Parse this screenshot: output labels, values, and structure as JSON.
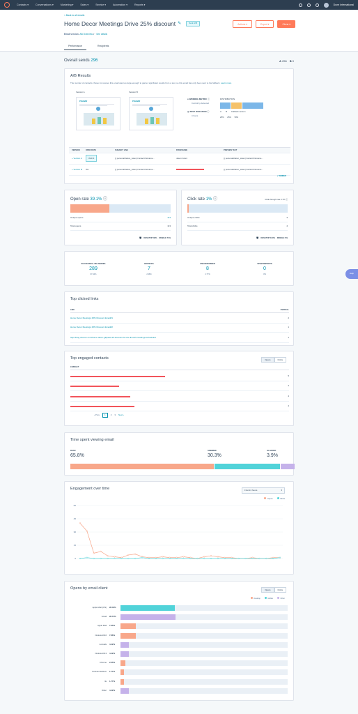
{
  "nav": {
    "items": [
      "Contacts",
      "Conversations",
      "Marketing",
      "Sales",
      "Service",
      "Automation",
      "Reports"
    ],
    "account": "Dune International"
  },
  "header": {
    "back": "< Back to all emails",
    "title": "Home Decor Meetings Drive 25% discount",
    "status": "Sent A/B",
    "email_version_label": "Email version:",
    "email_version_value": "AB Overview",
    "see_details": "See details",
    "actions": "Actions",
    "export": "Export",
    "clone": "Clone",
    "tabs": [
      "Performance",
      "Recipients"
    ]
  },
  "overall": {
    "label": "Overall sends",
    "value": "296",
    "a": "A",
    "a_val": "296",
    "b": "B",
    "b_val": "0"
  },
  "ab": {
    "title": "A/B Results",
    "description": "The number of contacts chosen to receive this email was too large enough to garner significant results from a test, so this email has only been sent to the fallback.",
    "learn_more": "Learn more",
    "version_a": "Version A",
    "version_b": "Version B",
    "thumb_brand": "POLMAR",
    "winning_metric_label": "WINNING METRIC",
    "winning_metric_value": "Control by delivered",
    "test_duration_label": "TEST DURATION",
    "test_duration_value": "4 hours",
    "distribution_label": "DISTRIBUTION",
    "dist_a": "A",
    "dist_b": "B",
    "dist_fallback": "Fallback version",
    "dist_a_pct": "25%",
    "dist_b_pct": "25%",
    "dist_fb_pct": "50%",
    "table_headers": [
      "VERSION",
      "OPEN RATE",
      "SUBJECT LINE",
      "FROM NAME",
      "PREVIEW TEXT"
    ],
    "rows": [
      {
        "version": "Version A",
        "open_rate": "39.1%",
        "subject": "{{ personalization_token('contact.firstname...",
        "from": "Jason Grant",
        "preview": "{{ personalization_token('contact.firstname..."
      },
      {
        "version": "Version B",
        "open_rate": "0%",
        "subject": "{{ personalization_token('contact.firstname...",
        "from": "",
        "preview": "{{ personalization_token('contact.firstname..."
      }
    ],
    "winner": "WINNER"
  },
  "open_rate": {
    "label": "Open rate",
    "value": "39.1%",
    "fill": 0.391,
    "unique_label": "Unique opens",
    "unique_value": "113",
    "total_label": "Total opens",
    "total_value": "113",
    "desktop": "DESKTOP 39%",
    "mobile": "MOBILE 74%"
  },
  "click_rate": {
    "label": "Click rate",
    "value": "1%",
    "fill": 0.01,
    "ctr": "Click-through rate 3.7%",
    "unique_label": "Unique clicks",
    "unique_value": "3",
    "total_label": "Total clicks",
    "total_value": "4",
    "desktop": "DESKTOP 100%",
    "mobile": "MOBILE 0%"
  },
  "delivery": [
    {
      "title": "SUCCESSFUL DELIVERIES",
      "value": "289",
      "sub": "97.64%"
    },
    {
      "title": "BOUNCES",
      "value": "7",
      "sub": "2.36%"
    },
    {
      "title": "UNSUBSCRIBED",
      "value": "8",
      "sub": "2.77%"
    },
    {
      "title": "SPAM REPORTS",
      "value": "0",
      "sub": "0%"
    }
  ],
  "links": {
    "title": "Top clicked links",
    "head_link": "LINK",
    "head_count": "OVERALL",
    "rows": [
      {
        "link": "Home Decor Meetings 25% Discount Email#1",
        "count": "2"
      },
      {
        "link": "Home Decor Meetings 25% Discount Email#2",
        "count": "1"
      },
      {
        "link": "http://blog.ohuzon.com/home-decor-giftpass-25-discount-for-the-first-25-meetings-scheduled",
        "count": "1"
      }
    ]
  },
  "contacts": {
    "title": "Top engaged contacts",
    "toggle_opens": "Opens",
    "toggle_clicks": "Clicks",
    "head": "CONTACT",
    "counts": [
      "5",
      "4",
      "4",
      "4"
    ],
    "pager_prev": "Prev",
    "pages": [
      "1",
      "2",
      "3"
    ],
    "pager_next": "Next"
  },
  "time": {
    "title": "Time spent viewing email",
    "read_label": "READ",
    "read_value": "65.8%",
    "read_fill": 0.658,
    "skimmed_label": "SKIMMED",
    "skimmed_value": "30.3%",
    "skimmed_fill": 0.303,
    "glanced_label": "GLANCED",
    "glanced_value": "3.9%",
    "glanced_fill": 0.039
  },
  "engagement": {
    "title": "Engagement over time",
    "range": "First 24 hours",
    "legend_opens": "Opens",
    "legend_clicks": "Clicks"
  },
  "chart_data": {
    "type": "line",
    "title": "Engagement over time",
    "y_ticks": [
      "0",
      "15",
      "30",
      "45",
      "60"
    ],
    "ylim": [
      0,
      60
    ],
    "series": [
      {
        "name": "Opens",
        "values": [
          40,
          31,
          6,
          8,
          3,
          2,
          1,
          4,
          5,
          2,
          1,
          1,
          2,
          1,
          1,
          2,
          1,
          0,
          2,
          3,
          2,
          1,
          1,
          0,
          0,
          1,
          0,
          0,
          1,
          1
        ]
      },
      {
        "name": "Clicks",
        "values": [
          0,
          1,
          0,
          0,
          0,
          0,
          0,
          0,
          0,
          1,
          0,
          0,
          0,
          0,
          0,
          0,
          0,
          0,
          0,
          0,
          0,
          0,
          0,
          0,
          0,
          0,
          0,
          0,
          0,
          1
        ]
      }
    ]
  },
  "clients": {
    "title": "Opens by email client",
    "toggle_opens": "Opens",
    "toggle_clicks": "Clicks",
    "legend": [
      "Desktop",
      "Mobile",
      "Other"
    ],
    "rows": [
      {
        "name": "Apple Mail (iOS)",
        "pct": "28.42%",
        "fill": 0.2842,
        "color": "#51d3d9"
      },
      {
        "name": "Gmail",
        "pct": "28.74%",
        "fill": 0.2874,
        "color": "#c5b2ea"
      },
      {
        "name": "Apple Mail",
        "pct": "7.95%",
        "fill": 0.0795,
        "color": "#f8a78a"
      },
      {
        "name": "Outlook 2016",
        "pct": "7.86%",
        "fill": 0.0786,
        "color": "#f8a78a"
      },
      {
        "name": "Lotmails",
        "pct": "4.42%",
        "fill": 0.0442,
        "color": "#c5b2ea"
      },
      {
        "name": "Outlook 2013",
        "pct": "4.42%",
        "fill": 0.0442,
        "color": "#c5b2ea"
      },
      {
        "name": "Chrome",
        "pct": "2.65%",
        "fill": 0.0265,
        "color": "#f8a78a"
      },
      {
        "name": "Outlook Redirect",
        "pct": "1.77%",
        "fill": 0.0177,
        "color": "#f8a78a"
      },
      {
        "name": "IE",
        "pct": "1.77%",
        "fill": 0.0177,
        "color": "#f8a78a"
      },
      {
        "name": "Other",
        "pct": "4.42%",
        "fill": 0.0442,
        "color": "#c5b2ea"
      }
    ]
  },
  "help": "Help",
  "colors": {
    "accent": "#ff7a59",
    "link": "#0091ae",
    "open": "#f8a78a",
    "skim": "#51d3d9",
    "glance": "#c5b2ea",
    "track": "#dbe9f5"
  }
}
